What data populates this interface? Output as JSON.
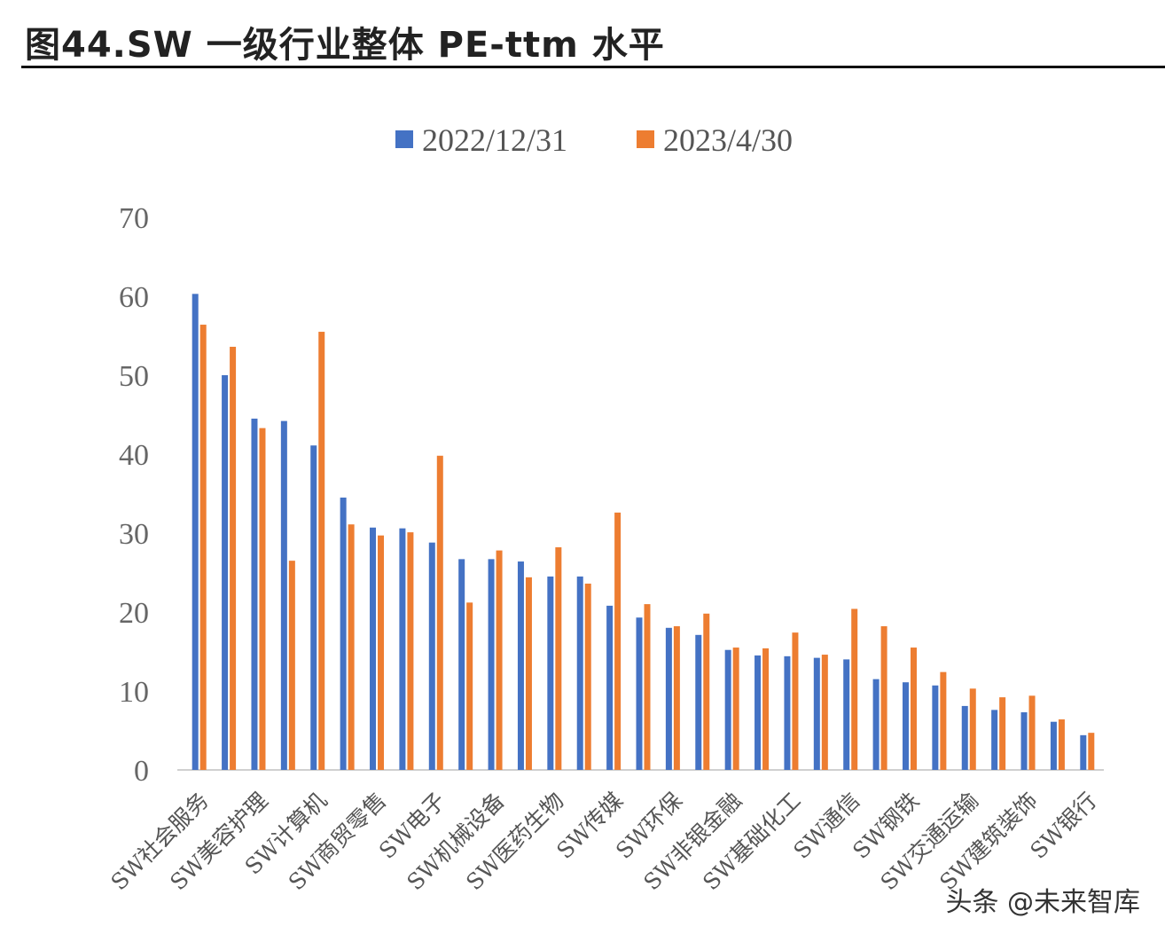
{
  "title": "图44.SW 一级行业整体 PE-ttm 水平",
  "watermark": "头条 @未来智库",
  "chart_data": {
    "type": "bar",
    "title": "图44.SW 一级行业整体 PE-ttm 水平",
    "xlabel": "",
    "ylabel": "",
    "ylim": [
      0,
      70
    ],
    "yticks": [
      0,
      10,
      20,
      30,
      40,
      50,
      60,
      70
    ],
    "grid": false,
    "legend_placement": "top",
    "categories": [
      "SW社会服务",
      "",
      "SW美容护理",
      "",
      "SW计算机",
      "",
      "SW商贸零售",
      "",
      "SW电子",
      "",
      "SW机械设备",
      "",
      "SW医药生物",
      "",
      "SW传媒",
      "",
      "SW环保",
      "",
      "SW非银金融",
      "",
      "SW基础化工",
      "",
      "SW通信",
      "",
      "SW钢铁",
      "",
      "SW交通运输",
      "",
      "SW建筑装饰",
      "",
      "SW银行"
    ],
    "series": [
      {
        "name": "2022/12/31",
        "color": "#4472C4",
        "values": [
          60.3,
          50.0,
          44.5,
          44.2,
          41.1,
          34.5,
          30.7,
          30.6,
          28.8,
          26.7,
          26.7,
          26.4,
          24.5,
          24.5,
          20.8,
          19.3,
          18.0,
          17.1,
          15.2,
          14.5,
          14.4,
          14.2,
          14.0,
          11.5,
          11.1,
          10.7,
          8.1,
          7.6,
          7.3,
          6.1,
          4.4
        ]
      },
      {
        "name": "2023/4/30",
        "color": "#ED7D31",
        "values": [
          56.4,
          53.6,
          43.3,
          26.5,
          55.5,
          31.1,
          29.7,
          30.1,
          39.8,
          21.2,
          27.8,
          24.4,
          28.2,
          23.6,
          32.6,
          21.0,
          18.2,
          19.8,
          15.5,
          15.4,
          17.4,
          14.6,
          20.4,
          18.2,
          15.5,
          12.4,
          10.3,
          9.2,
          9.4,
          6.4,
          4.7
        ]
      }
    ]
  }
}
